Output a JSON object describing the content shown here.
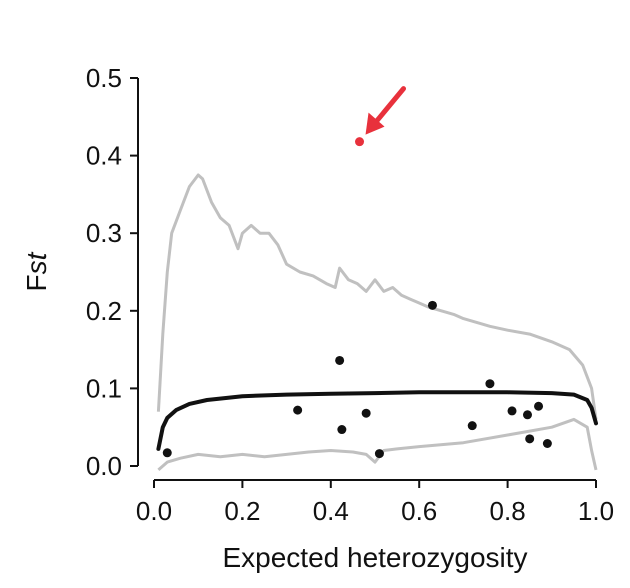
{
  "chart_data": {
    "type": "scatter",
    "title": "",
    "xlabel": "Expected heterozygosity",
    "ylabel_parts": [
      "F",
      "st"
    ],
    "xlim": [
      0.0,
      1.0
    ],
    "ylim": [
      0.0,
      0.5
    ],
    "x_ticks": [
      "0.0",
      "0.2",
      "0.4",
      "0.6",
      "0.8",
      "1.0"
    ],
    "y_ticks": [
      "0.0",
      "0.1",
      "0.2",
      "0.3",
      "0.4",
      "0.5"
    ],
    "grid": false,
    "legend": "none",
    "colors": {
      "points": "#111111",
      "outlier": "#e8313c",
      "median_line": "#111111",
      "quantile_lines": "#c0c0c0",
      "arrow": "#e8313c"
    },
    "points": [
      {
        "x": 0.03,
        "y": 0.017
      },
      {
        "x": 0.325,
        "y": 0.072
      },
      {
        "x": 0.42,
        "y": 0.136
      },
      {
        "x": 0.425,
        "y": 0.047
      },
      {
        "x": 0.48,
        "y": 0.068
      },
      {
        "x": 0.51,
        "y": 0.016
      },
      {
        "x": 0.63,
        "y": 0.207
      },
      {
        "x": 0.72,
        "y": 0.052
      },
      {
        "x": 0.76,
        "y": 0.106
      },
      {
        "x": 0.81,
        "y": 0.071
      },
      {
        "x": 0.845,
        "y": 0.066
      },
      {
        "x": 0.85,
        "y": 0.035
      },
      {
        "x": 0.87,
        "y": 0.077
      },
      {
        "x": 0.89,
        "y": 0.029
      }
    ],
    "outlier_point": {
      "x": 0.465,
      "y": 0.418
    },
    "series": [
      {
        "role": "upper-quantile",
        "x": [
          0.01,
          0.015,
          0.02,
          0.03,
          0.04,
          0.06,
          0.08,
          0.1,
          0.11,
          0.13,
          0.15,
          0.17,
          0.19,
          0.2,
          0.22,
          0.24,
          0.26,
          0.28,
          0.3,
          0.33,
          0.36,
          0.39,
          0.41,
          0.42,
          0.44,
          0.46,
          0.48,
          0.5,
          0.52,
          0.54,
          0.56,
          0.58,
          0.6,
          0.62,
          0.65,
          0.68,
          0.7,
          0.73,
          0.76,
          0.8,
          0.85,
          0.9,
          0.94,
          0.97,
          0.99,
          1.0
        ],
        "y": [
          0.07,
          0.12,
          0.17,
          0.25,
          0.3,
          0.33,
          0.36,
          0.375,
          0.37,
          0.34,
          0.32,
          0.31,
          0.28,
          0.3,
          0.31,
          0.3,
          0.3,
          0.285,
          0.26,
          0.25,
          0.245,
          0.235,
          0.23,
          0.255,
          0.24,
          0.235,
          0.225,
          0.24,
          0.225,
          0.23,
          0.22,
          0.215,
          0.21,
          0.205,
          0.2,
          0.195,
          0.19,
          0.185,
          0.18,
          0.175,
          0.17,
          0.16,
          0.15,
          0.13,
          0.1,
          0.06
        ]
      },
      {
        "role": "median",
        "x": [
          0.01,
          0.02,
          0.03,
          0.05,
          0.08,
          0.12,
          0.2,
          0.3,
          0.4,
          0.5,
          0.6,
          0.7,
          0.8,
          0.9,
          0.95,
          0.98,
          0.99,
          1.0
        ],
        "y": [
          0.022,
          0.05,
          0.062,
          0.072,
          0.08,
          0.085,
          0.09,
          0.092,
          0.093,
          0.094,
          0.095,
          0.095,
          0.095,
          0.094,
          0.092,
          0.085,
          0.075,
          0.055
        ]
      },
      {
        "role": "lower-quantile",
        "x": [
          0.01,
          0.03,
          0.06,
          0.1,
          0.15,
          0.2,
          0.25,
          0.3,
          0.35,
          0.4,
          0.45,
          0.48,
          0.5,
          0.52,
          0.55,
          0.6,
          0.7,
          0.8,
          0.85,
          0.9,
          0.95,
          0.98,
          0.99,
          1.0
        ],
        "y": [
          -0.005,
          0.005,
          0.01,
          0.015,
          0.012,
          0.015,
          0.012,
          0.015,
          0.018,
          0.02,
          0.018,
          0.015,
          0.005,
          0.02,
          0.022,
          0.025,
          0.03,
          0.04,
          0.045,
          0.05,
          0.06,
          0.05,
          0.02,
          -0.005
        ]
      }
    ]
  }
}
